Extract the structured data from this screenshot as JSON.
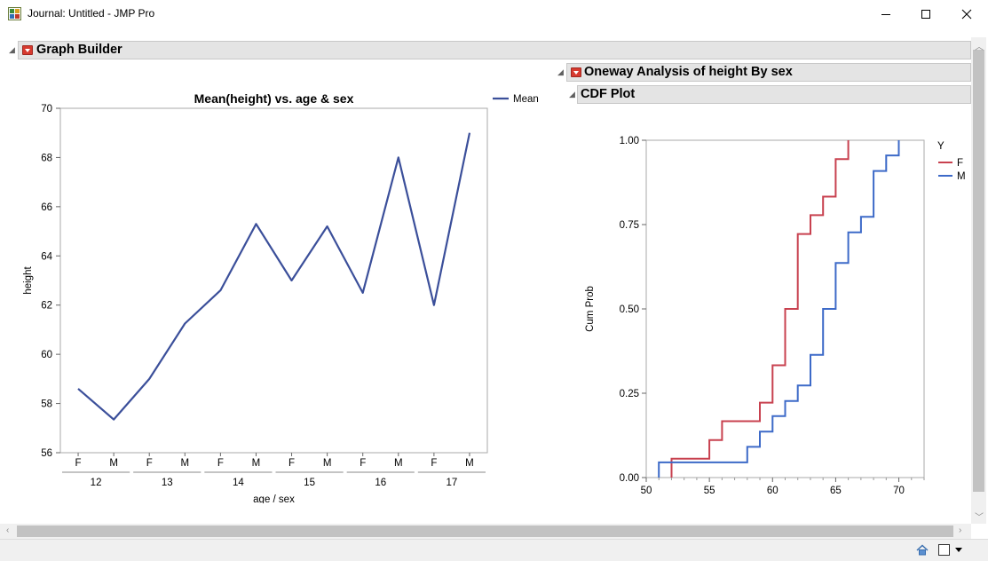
{
  "window": {
    "title": "Journal: Untitled - JMP Pro",
    "minimize_icon": "minimize-icon",
    "maximize_icon": "maximize-icon",
    "close_icon": "close-icon",
    "app_icon": "jmp-journal-icon"
  },
  "graph_builder": {
    "header": "Graph Builder",
    "chart_data": {
      "type": "line",
      "title": "Mean(height) vs. age & sex",
      "xlabel": "age / sex",
      "ylabel": "height",
      "ylim": [
        56,
        70
      ],
      "y_ticks": [
        "56",
        "58",
        "60",
        "62",
        "64",
        "66",
        "68",
        "70"
      ],
      "x_groups": [
        "12",
        "13",
        "14",
        "15",
        "16",
        "17"
      ],
      "categories": [
        "F",
        "M",
        "F",
        "M",
        "F",
        "M",
        "F",
        "M",
        "F",
        "M",
        "F",
        "M"
      ],
      "series": [
        {
          "name": "Mean",
          "color": "#3b4f9a",
          "values": [
            58.6,
            57.35,
            59.0,
            61.25,
            62.6,
            65.3,
            63.0,
            65.2,
            62.5,
            68.0,
            62.0,
            69.0
          ]
        }
      ],
      "legend_position": "top-right",
      "grid": false
    }
  },
  "oneway": {
    "header": "Oneway Analysis of height By sex",
    "cdf_header": "CDF Plot",
    "chart_data": {
      "type": "line",
      "subtype": "step",
      "title": "",
      "xlabel": "height",
      "ylabel": "Cum Prob",
      "xlim": [
        50,
        72
      ],
      "ylim": [
        0,
        1
      ],
      "x_ticks": [
        "50",
        "55",
        "60",
        "65",
        "70"
      ],
      "y_ticks": [
        "0.00",
        "0.25",
        "0.50",
        "0.75",
        "1.00"
      ],
      "legend_title": "Y",
      "legend_position": "right",
      "series": [
        {
          "name": "F",
          "color": "#c8414f",
          "x": [
            52,
            55,
            56,
            59,
            60,
            61,
            62,
            63,
            64,
            65,
            66
          ],
          "y": [
            0.056,
            0.111,
            0.167,
            0.222,
            0.333,
            0.5,
            0.722,
            0.778,
            0.833,
            0.944,
            1.0
          ]
        },
        {
          "name": "M",
          "color": "#3d6ac8",
          "x": [
            51,
            58,
            59,
            60,
            61,
            62,
            63,
            64,
            65,
            66,
            67,
            68,
            69,
            70
          ],
          "y": [
            0.045,
            0.091,
            0.136,
            0.182,
            0.227,
            0.273,
            0.364,
            0.5,
            0.636,
            0.727,
            0.773,
            0.909,
            0.955,
            1.0
          ]
        }
      ]
    }
  },
  "statusbar": {
    "home_icon": "home-icon",
    "window_list_icon": "window-list-icon"
  }
}
